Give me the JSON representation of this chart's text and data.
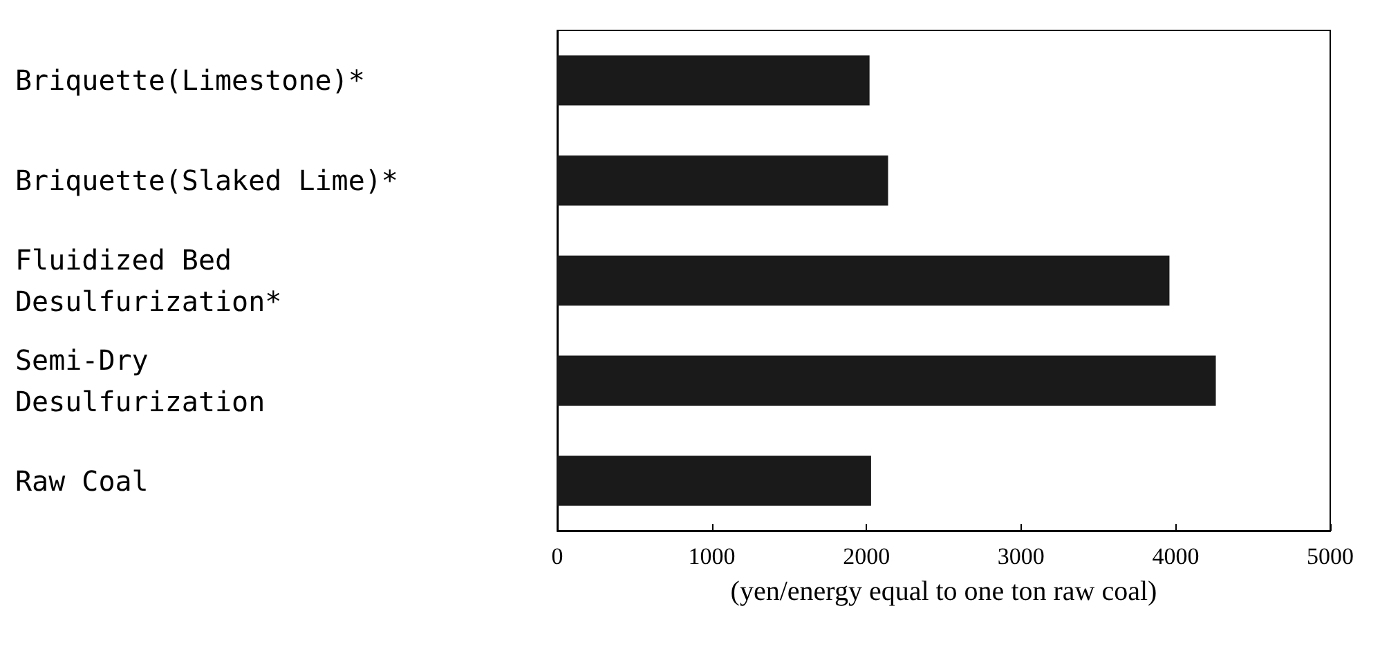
{
  "chart_data": {
    "type": "bar",
    "orientation": "horizontal",
    "categories": [
      "Briquette(Limestone)*",
      "Briquette(Slaked Lime)*",
      "Fluidized Bed\nDesulfurization*",
      "Semi-Dry\nDesulfurization",
      "Raw Coal"
    ],
    "values": [
      2020,
      2140,
      3960,
      4260,
      2030
    ],
    "color": "#1a1a1a",
    "xlabel": "(yen/energy equal to one ton raw coal)",
    "xlim": [
      0,
      5000
    ],
    "xticks": [
      0,
      1000,
      2000,
      3000,
      4000,
      5000
    ],
    "grid": false
  }
}
